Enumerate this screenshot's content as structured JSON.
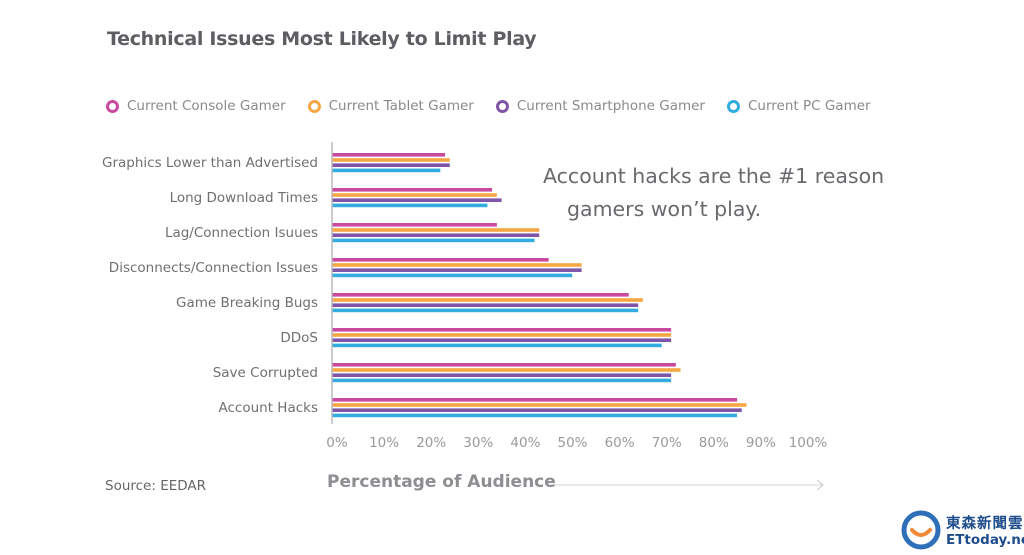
{
  "chart_data": {
    "type": "bar",
    "orientation": "horizontal",
    "title": "Technical Issues Most Likely to Limit Play",
    "xlabel": "Percentage of Audience",
    "ylabel": "",
    "xlim": [
      0,
      100
    ],
    "x_ticks": [
      "0%",
      "10%",
      "20%",
      "30%",
      "40%",
      "50%",
      "60%",
      "70%",
      "80%",
      "90%",
      "100%"
    ],
    "grid": false,
    "legend_position": "top",
    "categories": [
      "Graphics Lower than Advertised",
      "Long Download Times",
      "Lag/Connection Isuues",
      "Disconnects/Connection Issues",
      "Game Breaking Bugs",
      "DDoS",
      "Save Corrupted",
      "Account Hacks"
    ],
    "series": [
      {
        "name": "Current Console Gamer",
        "color": "#c94a9e",
        "values": [
          24,
          34,
          35,
          46,
          63,
          72,
          73,
          86
        ]
      },
      {
        "name": "Current Tablet Gamer",
        "color": "#f6a743",
        "values": [
          25,
          35,
          44,
          53,
          66,
          72,
          74,
          88
        ]
      },
      {
        "name": "Current Smartphone Gamer",
        "color": "#7f55a8",
        "values": [
          25,
          36,
          44,
          53,
          65,
          72,
          72,
          87
        ]
      },
      {
        "name": "Current PC Gamer",
        "color": "#35ace0",
        "values": [
          23,
          33,
          43,
          51,
          65,
          70,
          72,
          86
        ]
      }
    ],
    "annotation": [
      "Account hacks are the #1 reason",
      "gamers won’t play."
    ],
    "source": "Source: EEDAR"
  },
  "watermark": {
    "name_cn": "東森新聞雲",
    "name_en": "ETtoday.net"
  }
}
